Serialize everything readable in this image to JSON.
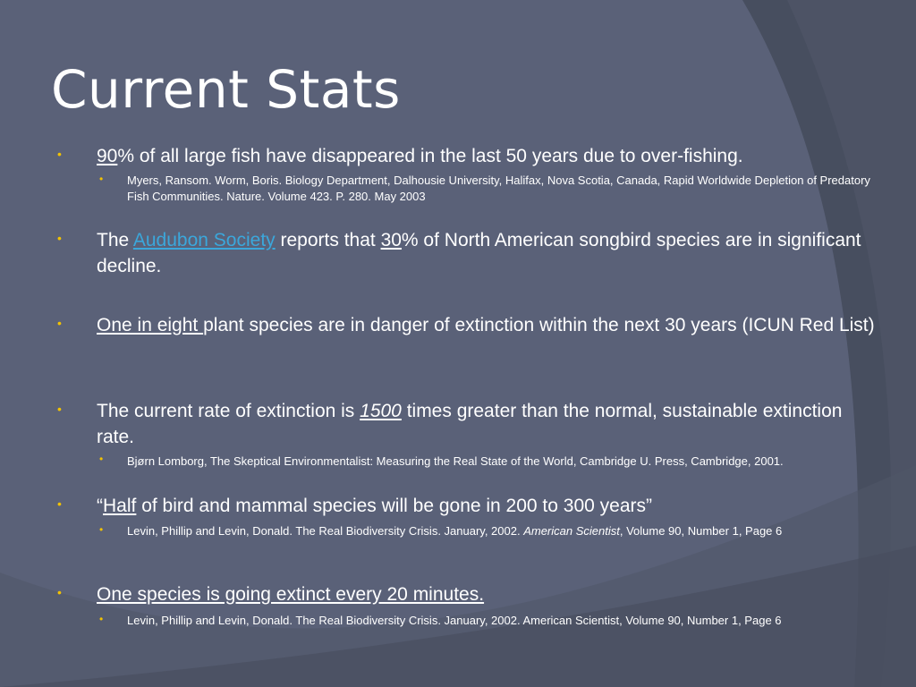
{
  "slide": {
    "title": "Current Stats",
    "bullets": [
      {
        "pre": "",
        "u": "90",
        "post": "% of all large fish have disappeared in the last 50 years due to over-fishing.",
        "sub": "Myers, Ransom.  Worm, Boris.  Biology Department, Dalhousie University, Halifax, Nova Scotia, Canada, Rapid Worldwide Depletion of Predatory Fish Communities. Nature. Volume 423.  P. 280. May 2003"
      },
      {
        "pre": "The ",
        "link": "Audubon Society",
        "mid": " reports that ",
        "u": "30",
        "post": "% of North American songbird species are in significant decline."
      },
      {
        "u": "One in eight ",
        "post": "plant species are in danger of extinction within the next 30 years (ICUN Red List)"
      },
      {
        "pre": "The current rate of extinction is ",
        "u": "1500",
        "post": " times greater than the normal, sustainable extinction rate.",
        "sub": "Bjørn Lomborg, The Skeptical Environmentalist: Measuring the Real State of the World, Cambridge U. Press, Cambridge, 2001."
      },
      {
        "pre": "“",
        "u": "Half",
        "post": " of bird and mammal species will be gone in 200 to 300 years”",
        "sub_pre": "Levin, Phillip and Levin, Donald.  The Real Biodiversity Crisis.  January, 2002.  ",
        "sub_em": "American Scientist",
        "sub_post": ", Volume 90, Number 1, Page 6"
      },
      {
        "u": "One species is going extinct every 20 minutes.",
        "sub": "Levin, Phillip and Levin, Donald.  The Real Biodiversity Crisis.  January, 2002.  American Scientist, Volume 90, Number 1, Page 6"
      }
    ]
  },
  "bullet_glyph": "•",
  "colors": {
    "background": "#4a5163",
    "panel": "#5a6178",
    "bullet": "#f2c200",
    "link": "#3ba7db",
    "text": "#ffffff"
  }
}
